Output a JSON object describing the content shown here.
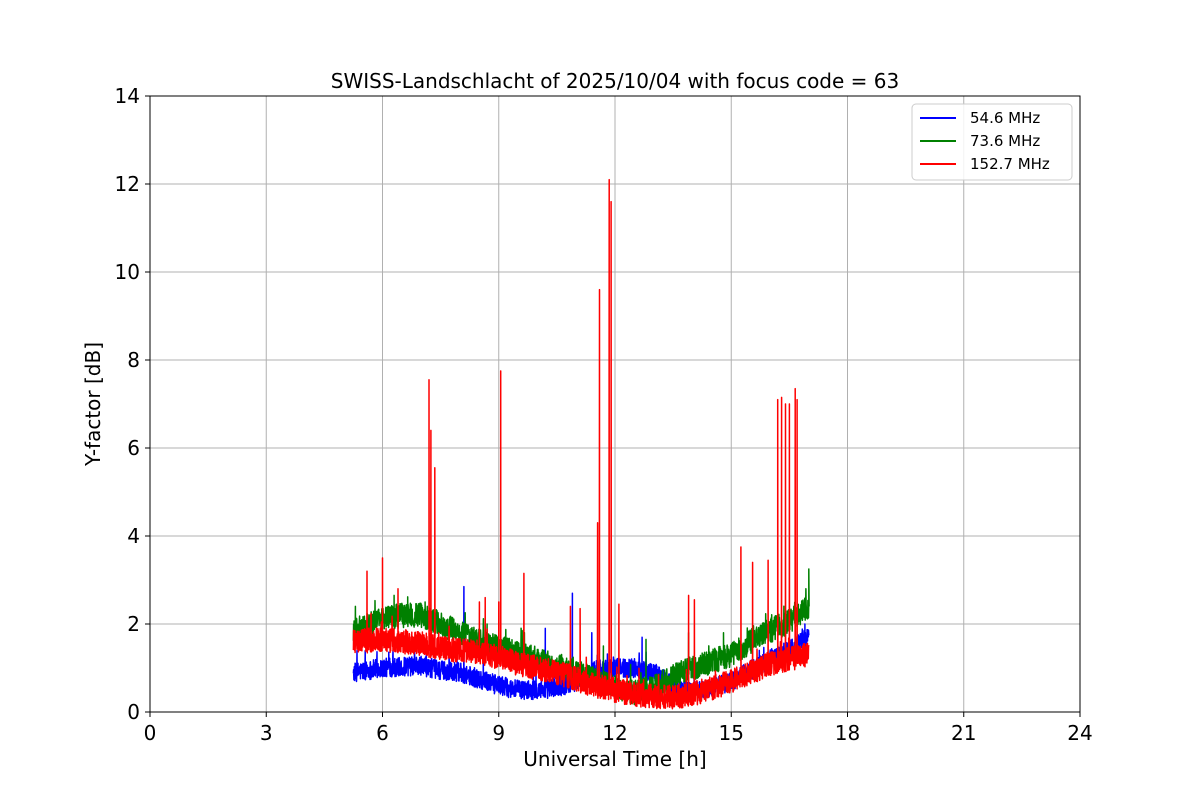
{
  "chart_data": {
    "type": "line",
    "title": "SWISS-Landschlacht of 2025/10/04 with focus code = 63",
    "xlabel": "Universal Time [h]",
    "ylabel": "Y-factor [dB]",
    "xlim": [
      0,
      24
    ],
    "ylim": [
      0,
      14
    ],
    "xticks": [
      0,
      3,
      6,
      9,
      12,
      15,
      18,
      21,
      24
    ],
    "yticks": [
      0,
      2,
      4,
      6,
      8,
      10,
      12,
      14
    ],
    "grid": true,
    "legend_position": "top-right",
    "series": [
      {
        "name": " 54.6 MHz",
        "color": "#0000ff",
        "baseline": [
          [
            5.25,
            0.9
          ],
          [
            6.0,
            1.0
          ],
          [
            7.0,
            1.05
          ],
          [
            7.5,
            0.95
          ],
          [
            8.0,
            0.9
          ],
          [
            8.5,
            0.75
          ],
          [
            9.0,
            0.6
          ],
          [
            9.5,
            0.5
          ],
          [
            10.0,
            0.5
          ],
          [
            10.5,
            0.55
          ],
          [
            11.0,
            0.7
          ],
          [
            11.5,
            0.95
          ],
          [
            12.0,
            1.0
          ],
          [
            12.5,
            1.0
          ],
          [
            13.0,
            0.9
          ],
          [
            13.5,
            0.6
          ],
          [
            14.0,
            0.45
          ],
          [
            14.5,
            0.55
          ],
          [
            15.0,
            0.7
          ],
          [
            15.5,
            0.95
          ],
          [
            16.0,
            1.2
          ],
          [
            16.5,
            1.4
          ],
          [
            17.0,
            1.7
          ]
        ],
        "noise": 0.22,
        "spikes": [
          [
            8.1,
            2.85
          ],
          [
            8.6,
            2.0
          ],
          [
            10.2,
            1.9
          ],
          [
            10.9,
            2.7
          ],
          [
            11.4,
            1.8
          ],
          [
            12.7,
            1.7
          ],
          [
            16.9,
            2.0
          ]
        ]
      },
      {
        "name": " 73.6 MHz",
        "color": "#008000",
        "baseline": [
          [
            5.25,
            1.85
          ],
          [
            6.0,
            2.1
          ],
          [
            6.5,
            2.2
          ],
          [
            7.0,
            2.2
          ],
          [
            7.5,
            2.0
          ],
          [
            8.0,
            1.8
          ],
          [
            8.5,
            1.6
          ],
          [
            9.0,
            1.45
          ],
          [
            9.5,
            1.35
          ],
          [
            10.0,
            1.2
          ],
          [
            10.5,
            1.05
          ],
          [
            11.0,
            0.9
          ],
          [
            11.5,
            0.75
          ],
          [
            12.0,
            0.55
          ],
          [
            12.5,
            0.45
          ],
          [
            13.0,
            0.55
          ],
          [
            13.5,
            0.8
          ],
          [
            14.0,
            1.0
          ],
          [
            14.5,
            1.15
          ],
          [
            15.0,
            1.3
          ],
          [
            15.5,
            1.6
          ],
          [
            16.0,
            1.85
          ],
          [
            16.5,
            2.05
          ],
          [
            17.0,
            2.4
          ]
        ],
        "noise": 0.28,
        "spikes": [
          [
            5.3,
            2.4
          ],
          [
            6.3,
            2.65
          ],
          [
            7.1,
            2.5
          ],
          [
            8.7,
            2.0
          ],
          [
            9.6,
            1.85
          ],
          [
            11.7,
            1.5
          ],
          [
            12.8,
            1.65
          ],
          [
            13.9,
            1.8
          ],
          [
            14.8,
            1.8
          ],
          [
            15.6,
            1.8
          ],
          [
            17.0,
            3.25
          ]
        ]
      },
      {
        "name": "152.7 MHz",
        "color": "#ff0000",
        "baseline": [
          [
            5.25,
            1.6
          ],
          [
            6.0,
            1.65
          ],
          [
            6.5,
            1.6
          ],
          [
            7.0,
            1.55
          ],
          [
            7.5,
            1.45
          ],
          [
            8.0,
            1.4
          ],
          [
            8.5,
            1.35
          ],
          [
            9.0,
            1.25
          ],
          [
            9.5,
            1.1
          ],
          [
            10.0,
            1.0
          ],
          [
            10.5,
            0.9
          ],
          [
            11.0,
            0.75
          ],
          [
            11.5,
            0.6
          ],
          [
            12.0,
            0.5
          ],
          [
            12.5,
            0.4
          ],
          [
            13.0,
            0.35
          ],
          [
            13.5,
            0.35
          ],
          [
            14.0,
            0.4
          ],
          [
            14.5,
            0.55
          ],
          [
            15.0,
            0.7
          ],
          [
            15.5,
            0.9
          ],
          [
            16.0,
            1.1
          ],
          [
            16.5,
            1.2
          ],
          [
            17.0,
            1.3
          ]
        ],
        "noise": 0.28,
        "spikes": [
          [
            5.6,
            3.2
          ],
          [
            6.0,
            3.5
          ],
          [
            6.4,
            2.8
          ],
          [
            7.2,
            7.55
          ],
          [
            7.25,
            6.4
          ],
          [
            7.35,
            5.55
          ],
          [
            8.5,
            2.5
          ],
          [
            8.65,
            2.6
          ],
          [
            9.05,
            7.75
          ],
          [
            9.0,
            2.5
          ],
          [
            9.65,
            3.15
          ],
          [
            10.85,
            2.4
          ],
          [
            11.1,
            2.35
          ],
          [
            11.55,
            4.3
          ],
          [
            11.6,
            9.6
          ],
          [
            11.85,
            12.1
          ],
          [
            11.9,
            11.6
          ],
          [
            12.1,
            2.45
          ],
          [
            13.9,
            2.65
          ],
          [
            14.05,
            2.55
          ],
          [
            15.25,
            3.75
          ],
          [
            15.55,
            3.4
          ],
          [
            15.95,
            3.45
          ],
          [
            16.2,
            7.1
          ],
          [
            16.3,
            7.15
          ],
          [
            16.4,
            7.0
          ],
          [
            16.5,
            7.0
          ],
          [
            16.65,
            7.35
          ],
          [
            16.7,
            7.1
          ]
        ]
      }
    ]
  }
}
